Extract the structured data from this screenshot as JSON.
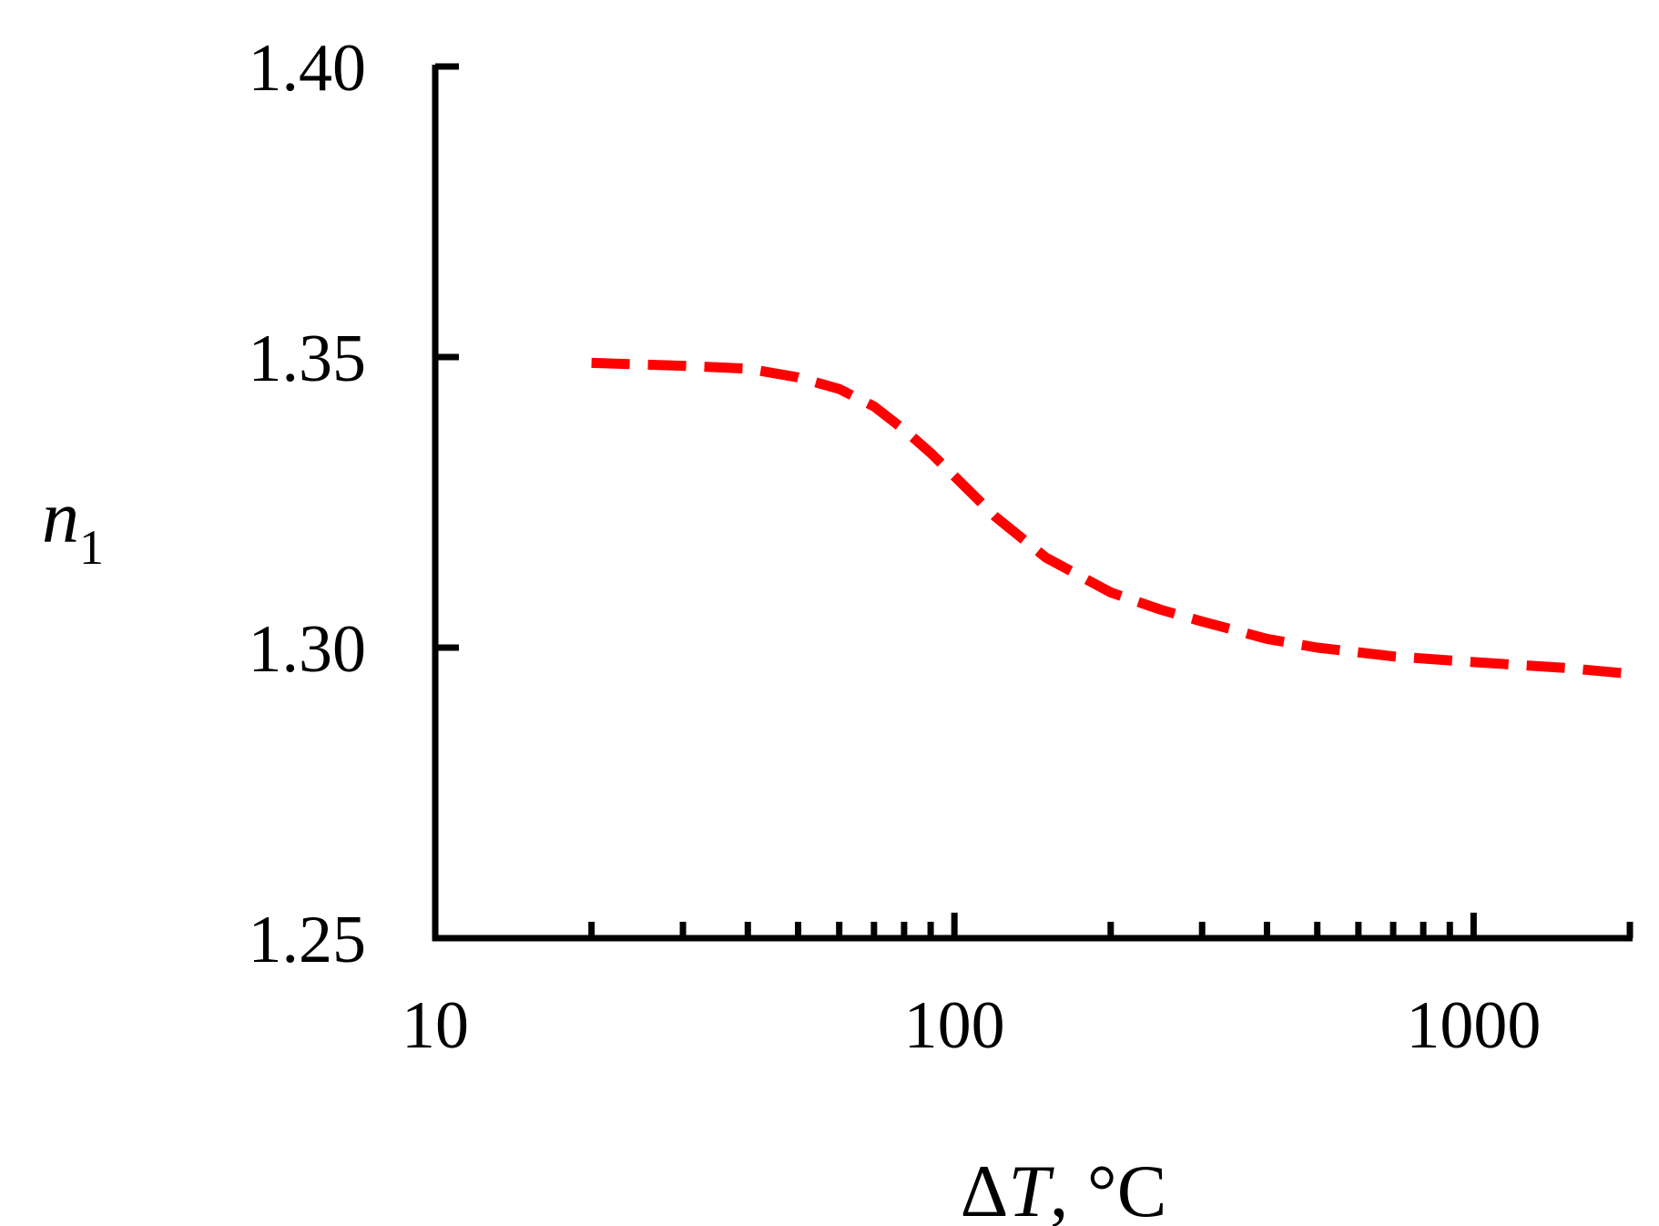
{
  "chart_data": {
    "type": "line",
    "title": "",
    "xlabel": {
      "symbol": "Δ",
      "var": "T",
      "unit": ", °C"
    },
    "ylabel": {
      "var": "n",
      "sub": "1"
    },
    "x_scale": "log",
    "xlim": [
      10,
      2000
    ],
    "ylim": [
      1.25,
      1.4
    ],
    "x_ticks": [
      10,
      100,
      1000
    ],
    "x_tick_labels": [
      "10",
      "100",
      "1000"
    ],
    "x_minor_ticks": [
      20,
      30,
      40,
      50,
      60,
      70,
      80,
      90,
      200,
      300,
      400,
      500,
      600,
      700,
      800,
      900,
      2000
    ],
    "y_ticks": [
      1.25,
      1.3,
      1.35,
      1.4
    ],
    "y_tick_labels": [
      "1.25",
      "1.30",
      "1.35",
      "1.40"
    ],
    "grid": false,
    "legend": "none",
    "series": [
      {
        "style": "dashed",
        "color": "#ff0000",
        "x": [
          20,
          30,
          40,
          50,
          60,
          70,
          80,
          90,
          100,
          120,
          150,
          200,
          250,
          300,
          400,
          500,
          700,
          1000,
          1500,
          2000
        ],
        "y": [
          1.349,
          1.3485,
          1.348,
          1.3465,
          1.3445,
          1.3415,
          1.3375,
          1.3335,
          1.3295,
          1.3225,
          1.3155,
          1.3095,
          1.3065,
          1.3045,
          1.3015,
          1.3,
          1.2985,
          1.2975,
          1.2965,
          1.2955
        ]
      }
    ]
  }
}
